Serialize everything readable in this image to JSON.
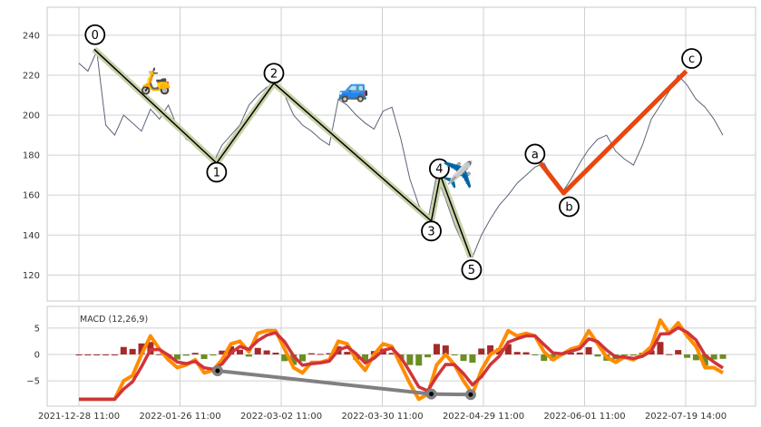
{
  "chart_data": [
    {
      "type": "line",
      "panel": "price",
      "ylim": [
        107,
        254
      ],
      "y_ticks": [
        120,
        140,
        160,
        180,
        200,
        220,
        240
      ],
      "x_tick_labels": [
        "2021-12-28 11:00",
        "2022-01-26 11:00",
        "2022-03-02 11:00",
        "2022-03-30 11:00",
        "2022-04-29 11:00",
        "2022-06-01 11:00",
        "2022-07-19 14:00"
      ],
      "grid": true,
      "series": [
        {
          "values": [
            226,
            222,
            232,
            195,
            190,
            200,
            196,
            192,
            203,
            198,
            205,
            194,
            188,
            185,
            180,
            176,
            185,
            190,
            195,
            205,
            210,
            214,
            216,
            210,
            200,
            195,
            192,
            188,
            185,
            208,
            205,
            200,
            196,
            193,
            202,
            204,
            188,
            168,
            155,
            147,
            170,
            158,
            145,
            135,
            129,
            140,
            148,
            155,
            160,
            166,
            170,
            174,
            176,
            168,
            161,
            168,
            176,
            183,
            188,
            190,
            182,
            178,
            175,
            185,
            198,
            205,
            212,
            220,
            215,
            208,
            204,
            198,
            190
          ]
        }
      ],
      "wave_impulse": [
        {
          "label": "0",
          "bar": 1.7,
          "price": 233
        },
        {
          "label": "1",
          "bar": 15.4,
          "price": 176
        },
        {
          "label": "2",
          "bar": 21.8,
          "price": 216
        },
        {
          "label": "3",
          "bar": 39.4,
          "price": 147
        },
        {
          "label": "4",
          "bar": 40.4,
          "price": 170
        },
        {
          "label": "5",
          "bar": 43.8,
          "price": 129
        }
      ],
      "wave_correction": [
        {
          "label": "a",
          "bar": 51.6,
          "price": 176
        },
        {
          "label": "b",
          "bar": 54.2,
          "price": 161
        },
        {
          "label": "c",
          "bar": 67.9,
          "price": 222
        }
      ],
      "icons": [
        {
          "name": "scooter-icon",
          "glyph": "🛵",
          "bar": 8.6,
          "price": 213
        },
        {
          "name": "car-icon",
          "glyph": "🚙",
          "bar": 30.7,
          "price": 209
        },
        {
          "name": "airplane-icon",
          "glyph": "✈️",
          "bar": 42.4,
          "price": 166
        }
      ],
      "colors": {
        "price": "#5a6478",
        "impulse_band": "#c8d2a8",
        "impulse_line": "#000000",
        "correction": "#e8470f"
      }
    },
    {
      "type": "line",
      "panel": "macd",
      "title": "MACD (12,26,9)",
      "ylim": [
        -9.8,
        9.1
      ],
      "y_ticks": [
        5,
        0,
        -5
      ],
      "y_tick_labels": [
        "5",
        "0",
        "−5"
      ],
      "grid": true,
      "macd": [
        -8.5,
        -8.5,
        -8.5,
        -8.5,
        -8.5,
        -5,
        -4,
        0,
        3.5,
        1,
        -1,
        -2.5,
        -2,
        -1,
        -3.5,
        -3,
        -1,
        2,
        2.5,
        0.5,
        4,
        4.5,
        4.5,
        1,
        -2.5,
        -3.5,
        -1.5,
        -1.5,
        -1,
        2.5,
        2,
        -1,
        -3,
        0,
        2,
        1.5,
        -2,
        -5.5,
        -8.5,
        -7.5,
        -2,
        0,
        -2,
        -5,
        -7.5,
        -3,
        0,
        1,
        4.5,
        3.5,
        4,
        3.5,
        0.5,
        -1,
        0,
        1,
        1.5,
        4.5,
        2,
        -0.5,
        -1.5,
        -0.5,
        -1,
        0,
        1.5,
        6.5,
        4,
        6,
        3.5,
        1.5,
        -2.5,
        -2.5,
        -3.5
      ],
      "divergence": [
        {
          "bar": 15.5,
          "value": -3.1
        },
        {
          "bar": 39.4,
          "value": -7.5
        },
        {
          "bar": 43.8,
          "value": -7.6
        }
      ],
      "colors": {
        "macd": "#ff8c00",
        "signal": "#d0343a",
        "hist_pos": "#a52a2a",
        "hist_neg": "#6b8e23",
        "divergence": "#808080"
      }
    }
  ]
}
